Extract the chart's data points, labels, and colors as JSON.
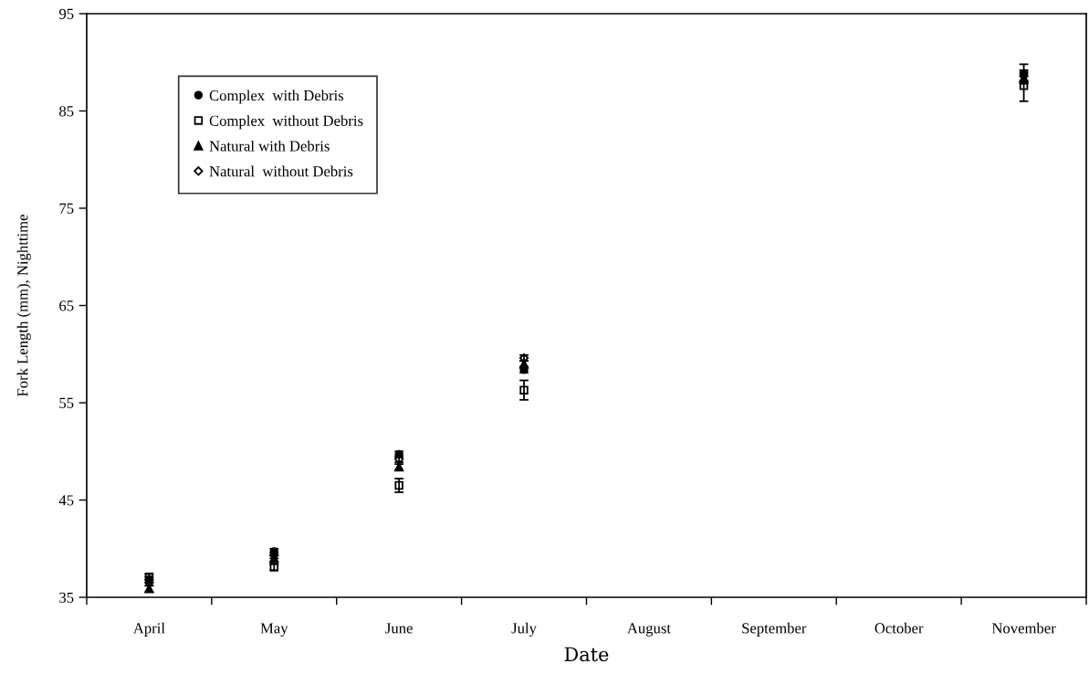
{
  "chart_data": {
    "type": "scatter",
    "xlabel": "Date",
    "ylabel": "Fork Length (mm), Nighttime",
    "categories": [
      "April",
      "May",
      "June",
      "July",
      "August",
      "September",
      "October",
      "November"
    ],
    "ylim": [
      35,
      95
    ],
    "yticks": [
      35,
      45,
      55,
      65,
      75,
      85,
      95
    ],
    "grid": false,
    "legend": "top left",
    "series": [
      {
        "name": "Complex  with Debris",
        "color": "#000000",
        "marker": "circle",
        "values": [
          36.8,
          39.7,
          49.7,
          58.4,
          null,
          null,
          null,
          88.8
        ],
        "errors": [
          0.3,
          0.3,
          0.3,
          0.3,
          null,
          null,
          null,
          1.0
        ]
      },
      {
        "name": "Complex  without Debris",
        "color": "#000000",
        "marker": "square",
        "values": [
          37.1,
          38.1,
          46.5,
          56.3,
          null,
          null,
          null,
          87.6
        ],
        "errors": [
          0.3,
          0.3,
          0.7,
          1.0,
          null,
          null,
          null,
          1.6
        ]
      },
      {
        "name": "Natural with Debris",
        "color": "#000000",
        "marker": "triangle",
        "values": [
          35.9,
          39.0,
          48.4,
          59.0,
          null,
          null,
          null,
          88.4
        ],
        "errors": [
          0.3,
          0.3,
          0.3,
          0.3,
          null,
          null,
          null,
          0.5
        ]
      },
      {
        "name": "Natural  without Debris",
        "color": "#000000",
        "marker": "diamond",
        "values": [
          36.5,
          39.3,
          49.2,
          59.6,
          null,
          null,
          null,
          88.6
        ],
        "errors": [
          0.3,
          0.3,
          0.3,
          0.3,
          null,
          null,
          null,
          0.5
        ]
      }
    ]
  }
}
